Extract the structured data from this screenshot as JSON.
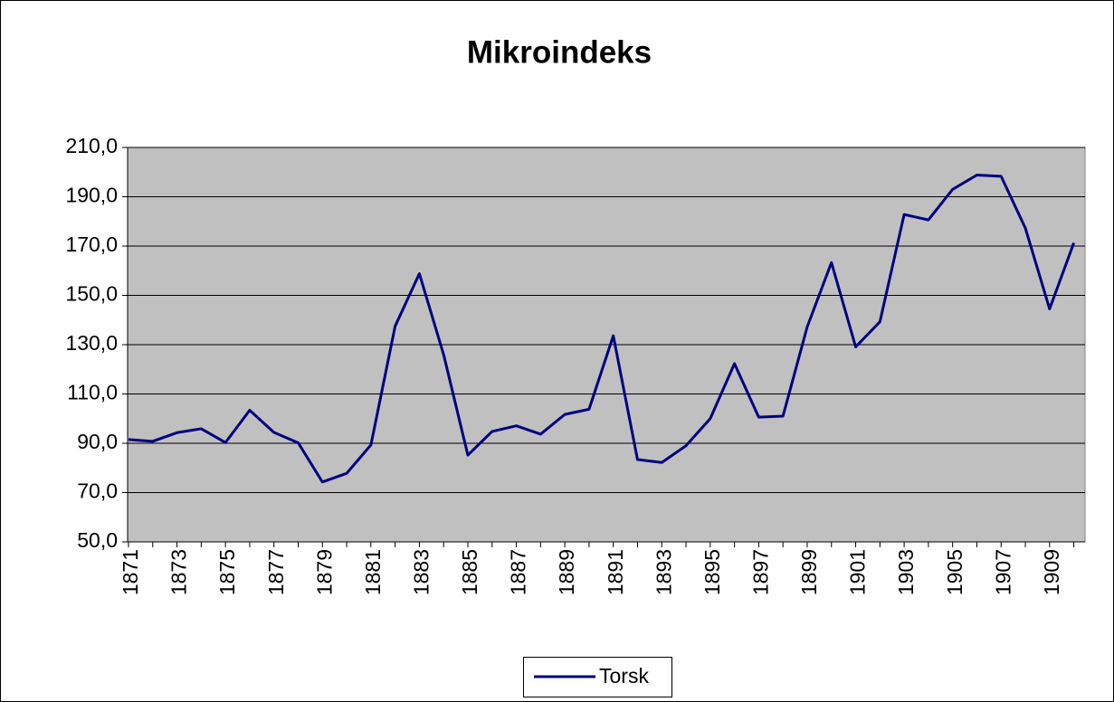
{
  "chart_data": {
    "type": "line",
    "title": "Mikroindeks",
    "categories": [
      "1871",
      null,
      "1873",
      null,
      "1875",
      null,
      "1877",
      null,
      "1879",
      null,
      "1881",
      null,
      "1883",
      null,
      "1885",
      null,
      "1887",
      null,
      "1889",
      null,
      "1891",
      null,
      "1893",
      null,
      "1895",
      null,
      "1897",
      null,
      "1899",
      null,
      "1901",
      null,
      "1903",
      null,
      "1905",
      null,
      "1907",
      null,
      "1909",
      null
    ],
    "series": [
      {
        "name": "Torsk",
        "color": "#000080",
        "values": [
          91.5,
          90.8,
          94.3,
          95.9,
          90.3,
          103.4,
          94.4,
          90.2,
          74.3,
          77.8,
          89.3,
          137.5,
          158.8,
          126,
          85.2,
          94.8,
          97.1,
          93.7,
          101.7,
          103.8,
          133.6,
          83.4,
          82.2,
          89,
          100,
          122.3,
          100.6,
          101,
          137.2,
          163.3,
          129.1,
          139.3,
          182.8,
          180.6,
          193,
          198.8,
          198.3,
          177.3,
          144.5,
          171.3
        ]
      }
    ],
    "ylim": [
      50,
      210
    ],
    "yticks": [
      {
        "value": 50,
        "label": "50,0"
      },
      {
        "value": 70,
        "label": "70,0"
      },
      {
        "value": 90,
        "label": "90,0"
      },
      {
        "value": 110,
        "label": "110,0"
      },
      {
        "value": 130,
        "label": "130,0"
      },
      {
        "value": 150,
        "label": "150,0"
      },
      {
        "value": 170,
        "label": "170,0"
      },
      {
        "value": 190,
        "label": "190,0"
      },
      {
        "value": 210,
        "label": "210,0"
      }
    ],
    "grid": true,
    "legend": "bottom"
  }
}
